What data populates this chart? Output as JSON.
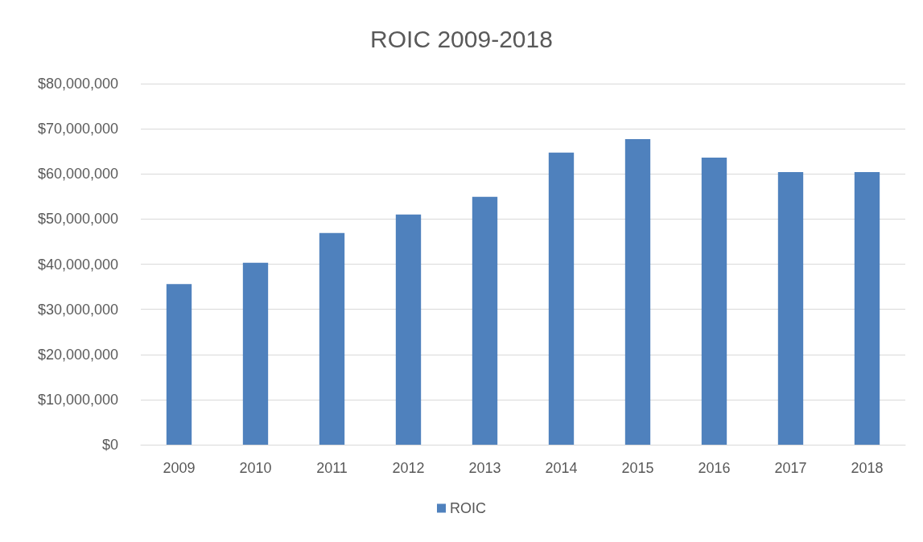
{
  "chart_data": {
    "type": "bar",
    "title": "ROIC 2009-2018",
    "categories": [
      "2009",
      "2010",
      "2011",
      "2012",
      "2013",
      "2014",
      "2015",
      "2016",
      "2017",
      "2018"
    ],
    "series": [
      {
        "name": "ROIC",
        "color": "#4f81bd",
        "values": [
          35600000,
          40300000,
          46900000,
          51000000,
          54900000,
          64700000,
          67700000,
          63600000,
          60400000,
          60400000
        ]
      }
    ],
    "ylim": [
      0,
      80000000
    ],
    "yticks": [
      {
        "value": 0,
        "label": "$0"
      },
      {
        "value": 10000000,
        "label": "$10,000,000"
      },
      {
        "value": 20000000,
        "label": "$20,000,000"
      },
      {
        "value": 30000000,
        "label": "$30,000,000"
      },
      {
        "value": 40000000,
        "label": "$40,000,000"
      },
      {
        "value": 50000000,
        "label": "$50,000,000"
      },
      {
        "value": 60000000,
        "label": "$60,000,000"
      },
      {
        "value": 70000000,
        "label": "$70,000,000"
      },
      {
        "value": 80000000,
        "label": "$80,000,000"
      }
    ],
    "grid": "y",
    "legend": "bottom"
  }
}
